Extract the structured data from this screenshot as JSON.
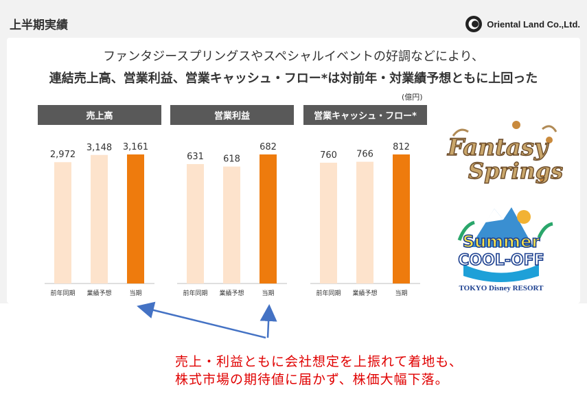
{
  "page": {
    "title": "上半期実績",
    "brand": "Oriental Land Co.,Ltd."
  },
  "headline": {
    "line1": "ファンタジースプリングスやスペシャルイベントの好調などにより、",
    "line2": "連結売上高、営業利益、営業キャッシュ・フロー*は対前年・対業績予想ともに上回った"
  },
  "unit": "(億円)",
  "chart_data": [
    {
      "type": "bar",
      "title": "売上高",
      "categories": [
        "前年同期",
        "業績予想",
        "当期"
      ],
      "values": [
        2972,
        3148,
        3161
      ],
      "labels": [
        "2,972",
        "3,148",
        "3,161"
      ]
    },
    {
      "type": "bar",
      "title": "営業利益",
      "categories": [
        "前年同期",
        "業績予想",
        "当期"
      ],
      "values": [
        631,
        618,
        682
      ],
      "labels": [
        "631",
        "618",
        "682"
      ]
    },
    {
      "type": "bar",
      "title": "営業キャッシュ・フロー*",
      "categories": [
        "前年同期",
        "業績予想",
        "当期"
      ],
      "values": [
        760,
        766,
        812
      ],
      "labels": [
        "760",
        "766",
        "812"
      ]
    }
  ],
  "colors": {
    "light_bar": "#fde3cc",
    "highlight_bar": "#ee7b0d",
    "panel_header": "#595959",
    "arrow": "#4472c4",
    "annotation": "#e00000"
  },
  "images": {
    "fantasy_springs": {
      "text1": "Fantasy",
      "text2": "Springs"
    },
    "summer_cool_off": {
      "text1": "Summer",
      "text2": "COOL-OFF",
      "footer": "TOKYO Disney RESORT"
    }
  },
  "annotation": {
    "line1": "売上・利益ともに会社想定を上振れて着地も、",
    "line2": "株式市場の期待値に届かず、株価大幅下落。"
  }
}
